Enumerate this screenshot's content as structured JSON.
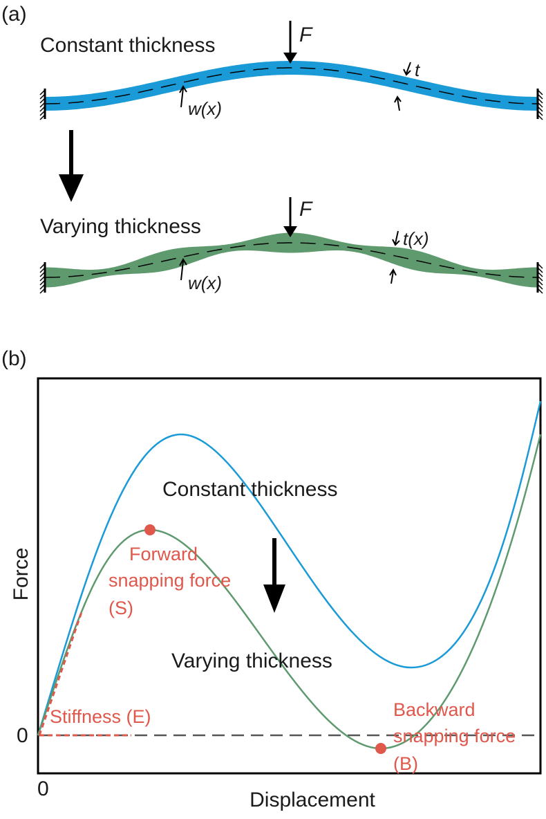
{
  "panel_a": {
    "label": "(a)",
    "constant": {
      "title": "Constant thickness",
      "force": "F",
      "thickness": "t",
      "deflection": "w(x)"
    },
    "varying": {
      "title": "Varying thickness",
      "force": "F",
      "thickness": "t(x)",
      "deflection": "w(x)"
    }
  },
  "panel_b": {
    "label": "(b)",
    "y_label": "Force",
    "x_label": "Displacement",
    "y_zero": "0",
    "x_zero": "0",
    "constant_label": "Constant thickness",
    "varying_label": "Varying thickness",
    "forward": {
      "line1": "Forward",
      "line2": "snapping force",
      "line3": "(S)"
    },
    "backward": {
      "line1": "Backward",
      "line2": "snapping force",
      "line3": "(B)"
    },
    "stiffness": "Stiffness (E)"
  }
}
